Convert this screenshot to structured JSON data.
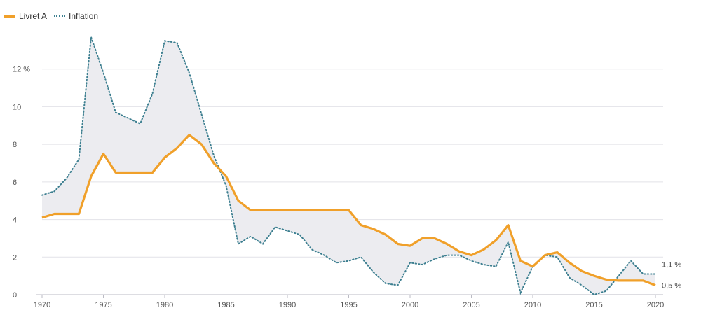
{
  "legend": {
    "livret_label": "Livret A",
    "inflation_label": "Inflation"
  },
  "colors": {
    "livret": "#f0a02a",
    "inflation": "#3d7f90",
    "fill": "#ececf0",
    "grid": "#e2e2e8"
  },
  "chart_data": {
    "type": "line",
    "title": "",
    "xlabel": "",
    "ylabel": "",
    "x": [
      1970,
      1971,
      1972,
      1973,
      1974,
      1975,
      1976,
      1977,
      1978,
      1979,
      1980,
      1981,
      1982,
      1983,
      1984,
      1985,
      1986,
      1987,
      1988,
      1989,
      1990,
      1991,
      1992,
      1993,
      1994,
      1995,
      1996,
      1997,
      1998,
      1999,
      2000,
      2001,
      2002,
      2003,
      2004,
      2005,
      2006,
      2007,
      2008,
      2009,
      2010,
      2011,
      2012,
      2013,
      2014,
      2015,
      2016,
      2017,
      2018,
      2019,
      2020
    ],
    "series": [
      {
        "name": "Livret A",
        "values": [
          4.1,
          4.3,
          4.3,
          4.3,
          6.3,
          7.5,
          6.5,
          6.5,
          6.5,
          6.5,
          7.3,
          7.8,
          8.5,
          8.0,
          7.0,
          6.3,
          5.0,
          4.5,
          4.5,
          4.5,
          4.5,
          4.5,
          4.5,
          4.5,
          4.5,
          4.5,
          3.7,
          3.5,
          3.2,
          2.7,
          2.6,
          3.0,
          3.0,
          2.7,
          2.3,
          2.1,
          2.4,
          2.9,
          3.7,
          1.8,
          1.5,
          2.1,
          2.25,
          1.7,
          1.25,
          1.0,
          0.8,
          0.75,
          0.75,
          0.75,
          0.5
        ]
      },
      {
        "name": "Inflation",
        "values": [
          5.3,
          5.5,
          6.2,
          7.2,
          13.7,
          11.8,
          9.7,
          9.4,
          9.1,
          10.7,
          13.5,
          13.4,
          11.8,
          9.6,
          7.4,
          5.8,
          2.7,
          3.1,
          2.7,
          3.6,
          3.4,
          3.2,
          2.4,
          2.1,
          1.7,
          1.8,
          2.0,
          1.2,
          0.6,
          0.5,
          1.7,
          1.6,
          1.9,
          2.1,
          2.1,
          1.8,
          1.6,
          1.5,
          2.8,
          0.1,
          1.5,
          2.1,
          2.0,
          0.9,
          0.5,
          0.0,
          0.2,
          1.0,
          1.8,
          1.1,
          1.1
        ]
      }
    ],
    "y_ticks": [
      {
        "value": 0,
        "label": "0"
      },
      {
        "value": 2,
        "label": "2"
      },
      {
        "value": 4,
        "label": "4"
      },
      {
        "value": 6,
        "label": "6"
      },
      {
        "value": 8,
        "label": "8"
      },
      {
        "value": 10,
        "label": "10"
      },
      {
        "value": 12,
        "label": "12 %"
      }
    ],
    "x_ticks": [
      1970,
      1975,
      1980,
      1985,
      1990,
      1995,
      2000,
      2005,
      2010,
      2015,
      2020
    ],
    "ylim": [
      0,
      14
    ],
    "xlim": [
      1970,
      2020
    ],
    "grid": true,
    "legend_position": "top-left",
    "end_labels": [
      {
        "series": "Inflation",
        "value": 1.1,
        "label": "1,1 %"
      },
      {
        "series": "Livret A",
        "value": 0.5,
        "label": "0,5 %"
      }
    ]
  }
}
